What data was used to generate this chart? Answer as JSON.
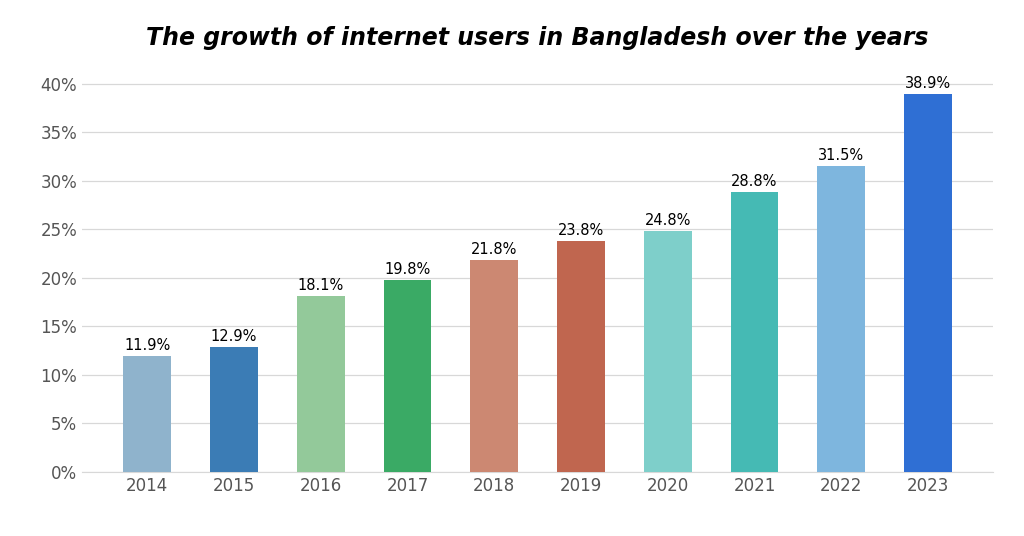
{
  "years": [
    "2014",
    "2015",
    "2016",
    "2017",
    "2018",
    "2019",
    "2020",
    "2021",
    "2022",
    "2023"
  ],
  "values": [
    11.9,
    12.9,
    18.1,
    19.8,
    21.8,
    23.8,
    24.8,
    28.8,
    31.5,
    38.9
  ],
  "bar_colors": [
    "#8fb3cc",
    "#3b7cb5",
    "#93c99a",
    "#3aaa65",
    "#cc8872",
    "#c0664f",
    "#7ecfca",
    "#45bab4",
    "#7eb6de",
    "#2f6fd4"
  ],
  "title": "The growth of internet users in Bangladesh over the years",
  "ylim": [
    0,
    42
  ],
  "yticks": [
    0,
    5,
    10,
    15,
    20,
    25,
    30,
    35,
    40
  ],
  "ytick_labels": [
    "0%",
    "5%",
    "10%",
    "15%",
    "20%",
    "25%",
    "30%",
    "35%",
    "40%"
  ],
  "title_fontsize": 17,
  "label_fontsize": 10.5,
  "tick_fontsize": 12,
  "background_color": "#ffffff",
  "grid_color": "#d8d8d8",
  "bar_width": 0.55
}
